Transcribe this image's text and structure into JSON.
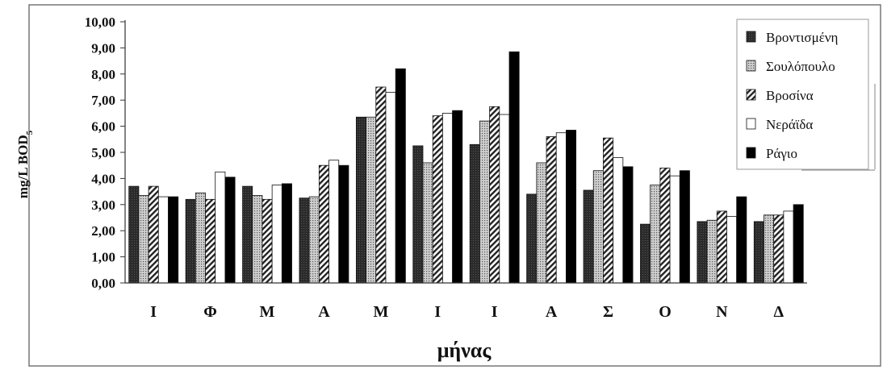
{
  "chart_data": {
    "type": "bar",
    "title": "",
    "xlabel": "μήνας",
    "ylabel_main": "mg/L BOD",
    "ylabel_sub": "5",
    "ylim": [
      0,
      10
    ],
    "yticks": [
      "0,00",
      "1,00",
      "2,00",
      "3,00",
      "4,00",
      "5,00",
      "6,00",
      "7,00",
      "8,00",
      "9,00",
      "10,00"
    ],
    "grid": false,
    "legend_position": "top-right",
    "categories": [
      "Ι",
      "Φ",
      "Μ",
      "Α",
      "Μ",
      "Ι",
      "Ι",
      "Α",
      "Σ",
      "Ο",
      "Ν",
      "Δ"
    ],
    "series": [
      {
        "name": "Βροντισμένη",
        "pattern": "dark",
        "values": [
          3.7,
          3.2,
          3.7,
          3.25,
          6.35,
          5.25,
          5.3,
          3.4,
          3.55,
          2.25,
          2.35,
          2.35
        ]
      },
      {
        "name": "Σουλόπουλο",
        "pattern": "dotted",
        "values": [
          3.35,
          3.45,
          3.35,
          3.3,
          6.35,
          4.6,
          6.2,
          4.6,
          4.3,
          3.75,
          2.4,
          2.6
        ]
      },
      {
        "name": "Βροσίνα",
        "pattern": "hatched",
        "values": [
          3.7,
          3.2,
          3.2,
          4.5,
          7.5,
          6.4,
          6.75,
          5.6,
          5.55,
          4.4,
          2.75,
          2.6
        ]
      },
      {
        "name": "Νεράϊδα",
        "pattern": "white",
        "values": [
          3.3,
          4.25,
          3.75,
          4.7,
          7.3,
          6.5,
          6.45,
          5.75,
          4.8,
          4.1,
          2.55,
          2.75
        ]
      },
      {
        "name": "Ράγιο",
        "pattern": "black",
        "values": [
          3.3,
          4.05,
          3.8,
          4.5,
          8.2,
          6.6,
          8.85,
          5.85,
          4.45,
          4.3,
          3.3,
          3.0
        ]
      }
    ],
    "colors": {
      "dark": "#2b2b2b",
      "dotted_bg": "#cfcfcf",
      "dotted_dot": "#555555",
      "hatch_bg": "#ffffff",
      "hatch_line": "#222222",
      "white": "#ffffff",
      "black": "#000000",
      "axis": "#333333"
    }
  }
}
